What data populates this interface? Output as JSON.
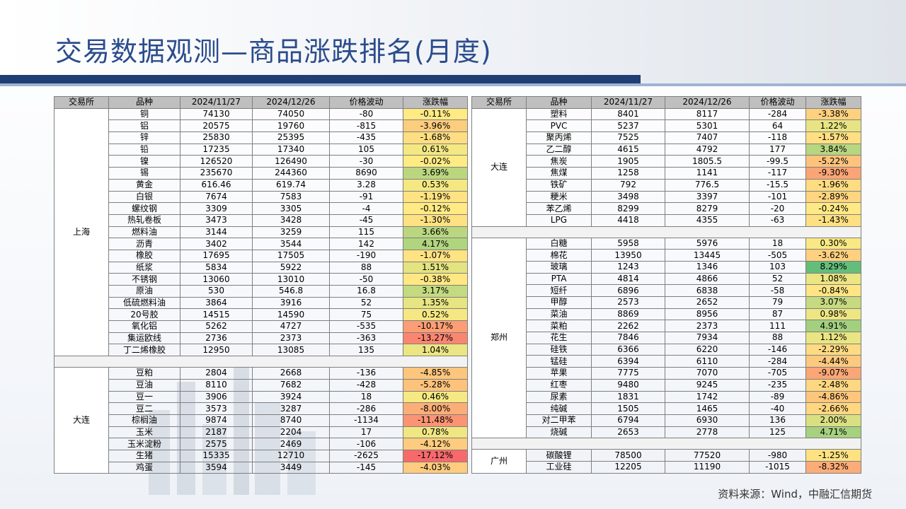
{
  "slide": {
    "title": "交易数据观测—商品涨跌排名(月度)",
    "source": "资料来源：Wind，中融汇信期货"
  },
  "table_headers": [
    "交易所",
    "品种",
    "2024/11/27",
    "2024/12/26",
    "价格波动",
    "涨跌幅"
  ],
  "colors": {
    "green": "#63be7b",
    "yellow": "#ffeb84",
    "red": "#f8696b"
  },
  "left_groups": [
    {
      "exchange": "上海",
      "rows": [
        {
          "name": "铜",
          "p1": "74130",
          "p2": "74050",
          "chg": "-80",
          "pct": "-0.11%",
          "v": -0.11
        },
        {
          "name": "铝",
          "p1": "20575",
          "p2": "19760",
          "chg": "-815",
          "pct": "-3.96%",
          "v": -3.96
        },
        {
          "name": "锌",
          "p1": "25830",
          "p2": "25395",
          "chg": "-435",
          "pct": "-1.68%",
          "v": -1.68
        },
        {
          "name": "铅",
          "p1": "17235",
          "p2": "17340",
          "chg": "105",
          "pct": "0.61%",
          "v": 0.61
        },
        {
          "name": "镍",
          "p1": "126520",
          "p2": "126490",
          "chg": "-30",
          "pct": "-0.02%",
          "v": -0.02
        },
        {
          "name": "锡",
          "p1": "235670",
          "p2": "244360",
          "chg": "8690",
          "pct": "3.69%",
          "v": 3.69
        },
        {
          "name": "黄金",
          "p1": "616.46",
          "p2": "619.74",
          "chg": "3.28",
          "pct": "0.53%",
          "v": 0.53
        },
        {
          "name": "白银",
          "p1": "7674",
          "p2": "7583",
          "chg": "-91",
          "pct": "-1.19%",
          "v": -1.19
        },
        {
          "name": "螺纹钢",
          "p1": "3309",
          "p2": "3305",
          "chg": "-4",
          "pct": "-0.12%",
          "v": -0.12
        },
        {
          "name": "热轧卷板",
          "p1": "3473",
          "p2": "3428",
          "chg": "-45",
          "pct": "-1.30%",
          "v": -1.3
        },
        {
          "name": "燃料油",
          "p1": "3144",
          "p2": "3259",
          "chg": "115",
          "pct": "3.66%",
          "v": 3.66
        },
        {
          "name": "沥青",
          "p1": "3402",
          "p2": "3544",
          "chg": "142",
          "pct": "4.17%",
          "v": 4.17
        },
        {
          "name": "橡胶",
          "p1": "17695",
          "p2": "17505",
          "chg": "-190",
          "pct": "-1.07%",
          "v": -1.07
        },
        {
          "name": "纸浆",
          "p1": "5834",
          "p2": "5922",
          "chg": "88",
          "pct": "1.51%",
          "v": 1.51
        },
        {
          "name": "不锈钢",
          "p1": "13060",
          "p2": "13010",
          "chg": "-50",
          "pct": "-0.38%",
          "v": -0.38
        },
        {
          "name": "原油",
          "p1": "530",
          "p2": "546.8",
          "chg": "16.8",
          "pct": "3.17%",
          "v": 3.17
        },
        {
          "name": "低硫燃料油",
          "p1": "3864",
          "p2": "3916",
          "chg": "52",
          "pct": "1.35%",
          "v": 1.35
        },
        {
          "name": "20号胶",
          "p1": "14515",
          "p2": "14590",
          "chg": "75",
          "pct": "0.52%",
          "v": 0.52
        },
        {
          "name": "氧化铝",
          "p1": "5262",
          "p2": "4727",
          "chg": "-535",
          "pct": "-10.17%",
          "v": -10.17
        },
        {
          "name": "集运欧线",
          "p1": "2736",
          "p2": "2373",
          "chg": "-363",
          "pct": "-13.27%",
          "v": -13.27
        },
        {
          "name": "丁二烯橡胶",
          "p1": "12950",
          "p2": "13085",
          "chg": "135",
          "pct": "1.04%",
          "v": 1.04
        }
      ]
    },
    {
      "exchange": "大连",
      "rows": [
        {
          "name": "豆粕",
          "p1": "2804",
          "p2": "2668",
          "chg": "-136",
          "pct": "-4.85%",
          "v": -4.85
        },
        {
          "name": "豆油",
          "p1": "8110",
          "p2": "7682",
          "chg": "-428",
          "pct": "-5.28%",
          "v": -5.28
        },
        {
          "name": "豆一",
          "p1": "3906",
          "p2": "3924",
          "chg": "18",
          "pct": "0.46%",
          "v": 0.46
        },
        {
          "name": "豆二",
          "p1": "3573",
          "p2": "3287",
          "chg": "-286",
          "pct": "-8.00%",
          "v": -8.0
        },
        {
          "name": "棕榈油",
          "p1": "9874",
          "p2": "8740",
          "chg": "-1134",
          "pct": "-11.48%",
          "v": -11.48
        },
        {
          "name": "玉米",
          "p1": "2187",
          "p2": "2204",
          "chg": "17",
          "pct": "0.78%",
          "v": 0.78
        },
        {
          "name": "玉米淀粉",
          "p1": "2575",
          "p2": "2469",
          "chg": "-106",
          "pct": "-4.12%",
          "v": -4.12
        },
        {
          "name": "生猪",
          "p1": "15335",
          "p2": "12710",
          "chg": "-2625",
          "pct": "-17.12%",
          "v": -17.12
        },
        {
          "name": "鸡蛋",
          "p1": "3594",
          "p2": "3449",
          "chg": "-145",
          "pct": "-4.03%",
          "v": -4.03
        }
      ]
    }
  ],
  "right_groups": [
    {
      "exchange": "大连",
      "rows": [
        {
          "name": "塑料",
          "p1": "8401",
          "p2": "8117",
          "chg": "-284",
          "pct": "-3.38%",
          "v": -3.38
        },
        {
          "name": "PVC",
          "p1": "5237",
          "p2": "5301",
          "chg": "64",
          "pct": "1.22%",
          "v": 1.22
        },
        {
          "name": "聚丙烯",
          "p1": "7525",
          "p2": "7407",
          "chg": "-118",
          "pct": "-1.57%",
          "v": -1.57
        },
        {
          "name": "乙二醇",
          "p1": "4615",
          "p2": "4792",
          "chg": "177",
          "pct": "3.84%",
          "v": 3.84
        },
        {
          "name": "焦炭",
          "p1": "1905",
          "p2": "1805.5",
          "chg": "-99.5",
          "pct": "-5.22%",
          "v": -5.22
        },
        {
          "name": "焦煤",
          "p1": "1258",
          "p2": "1141",
          "chg": "-117",
          "pct": "-9.30%",
          "v": -9.3
        },
        {
          "name": "铁矿",
          "p1": "792",
          "p2": "776.5",
          "chg": "-15.5",
          "pct": "-1.96%",
          "v": -1.96
        },
        {
          "name": "粳米",
          "p1": "3498",
          "p2": "3397",
          "chg": "-101",
          "pct": "-2.89%",
          "v": -2.89
        },
        {
          "name": "苯乙烯",
          "p1": "8299",
          "p2": "8279",
          "chg": "-20",
          "pct": "-0.24%",
          "v": -0.24
        },
        {
          "name": "LPG",
          "p1": "4418",
          "p2": "4355",
          "chg": "-63",
          "pct": "-1.43%",
          "v": -1.43
        }
      ]
    },
    {
      "exchange": "郑州",
      "rows": [
        {
          "name": "白糖",
          "p1": "5958",
          "p2": "5976",
          "chg": "18",
          "pct": "0.30%",
          "v": 0.3
        },
        {
          "name": "棉花",
          "p1": "13950",
          "p2": "13445",
          "chg": "-505",
          "pct": "-3.62%",
          "v": -3.62
        },
        {
          "name": "玻璃",
          "p1": "1243",
          "p2": "1346",
          "chg": "103",
          "pct": "8.29%",
          "v": 8.29
        },
        {
          "name": "PTA",
          "p1": "4814",
          "p2": "4866",
          "chg": "52",
          "pct": "1.08%",
          "v": 1.08
        },
        {
          "name": "短纤",
          "p1": "6896",
          "p2": "6838",
          "chg": "-58",
          "pct": "-0.84%",
          "v": -0.84
        },
        {
          "name": "甲醇",
          "p1": "2573",
          "p2": "2652",
          "chg": "79",
          "pct": "3.07%",
          "v": 3.07
        },
        {
          "name": "菜油",
          "p1": "8869",
          "p2": "8956",
          "chg": "87",
          "pct": "0.98%",
          "v": 0.98
        },
        {
          "name": "菜粕",
          "p1": "2262",
          "p2": "2373",
          "chg": "111",
          "pct": "4.91%",
          "v": 4.91
        },
        {
          "name": "花生",
          "p1": "7846",
          "p2": "7934",
          "chg": "88",
          "pct": "1.12%",
          "v": 1.12
        },
        {
          "name": "硅铁",
          "p1": "6366",
          "p2": "6220",
          "chg": "-146",
          "pct": "-2.29%",
          "v": -2.29
        },
        {
          "name": "锰硅",
          "p1": "6394",
          "p2": "6110",
          "chg": "-284",
          "pct": "-4.44%",
          "v": -4.44
        },
        {
          "name": "苹果",
          "p1": "7775",
          "p2": "7070",
          "chg": "-705",
          "pct": "-9.07%",
          "v": -9.07
        },
        {
          "name": "红枣",
          "p1": "9480",
          "p2": "9245",
          "chg": "-235",
          "pct": "-2.48%",
          "v": -2.48
        },
        {
          "name": "尿素",
          "p1": "1831",
          "p2": "1742",
          "chg": "-89",
          "pct": "-4.86%",
          "v": -4.86
        },
        {
          "name": "纯碱",
          "p1": "1505",
          "p2": "1465",
          "chg": "-40",
          "pct": "-2.66%",
          "v": -2.66
        },
        {
          "name": "对二甲苯",
          "p1": "6794",
          "p2": "6930",
          "chg": "136",
          "pct": "2.00%",
          "v": 2.0
        },
        {
          "name": "烧碱",
          "p1": "2653",
          "p2": "2778",
          "chg": "125",
          "pct": "4.71%",
          "v": 4.71
        }
      ]
    },
    {
      "exchange": "广州",
      "rows": [
        {
          "name": "碳酸锂",
          "p1": "78500",
          "p2": "77520",
          "chg": "-980",
          "pct": "-1.25%",
          "v": -1.25
        },
        {
          "name": "工业硅",
          "p1": "12205",
          "p2": "11190",
          "chg": "-1015",
          "pct": "-8.32%",
          "v": -8.32
        }
      ]
    }
  ]
}
